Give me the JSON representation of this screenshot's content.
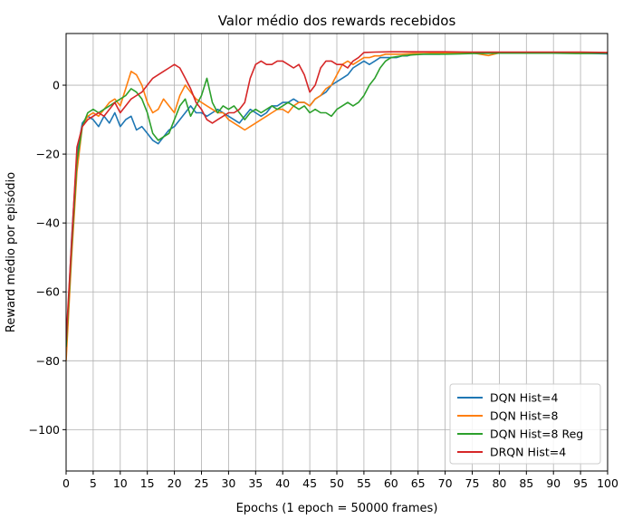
{
  "chart_data": {
    "type": "line",
    "title": "Valor médio dos rewards recebidos",
    "xlabel": "Epochs (1 epoch = 50000 frames)",
    "ylabel": "Reward médio por episódio",
    "xlim": [
      0,
      100
    ],
    "ylim": [
      -112,
      15
    ],
    "x_ticks": [
      0,
      5,
      10,
      15,
      20,
      25,
      30,
      35,
      40,
      45,
      50,
      55,
      60,
      65,
      70,
      75,
      80,
      85,
      90,
      95,
      100
    ],
    "x_tick_labels": [
      "0",
      "5",
      "10",
      "15",
      "20",
      "25",
      "30",
      "35",
      "40",
      "45",
      "50",
      "55",
      "60",
      "65",
      "70",
      "75",
      "80",
      "85",
      "90",
      "95",
      "100"
    ],
    "y_ticks": [
      -100,
      -80,
      -60,
      -40,
      -20,
      0
    ],
    "y_tick_labels": [
      "−100",
      "−80",
      "−60",
      "−40",
      "−20",
      "0"
    ],
    "grid": true,
    "legend_position": "bottom-right",
    "series": [
      {
        "name": "DQN Hist=4",
        "color": "#1f77b4",
        "points": [
          [
            0,
            -78
          ],
          [
            1,
            -45
          ],
          [
            2,
            -20
          ],
          [
            3,
            -11
          ],
          [
            4,
            -9
          ],
          [
            5,
            -10
          ],
          [
            6,
            -12
          ],
          [
            7,
            -9
          ],
          [
            8,
            -11
          ],
          [
            9,
            -8
          ],
          [
            10,
            -12
          ],
          [
            11,
            -10
          ],
          [
            12,
            -9
          ],
          [
            13,
            -13
          ],
          [
            14,
            -12
          ],
          [
            15,
            -14
          ],
          [
            16,
            -16
          ],
          [
            17,
            -17
          ],
          [
            18,
            -15
          ],
          [
            19,
            -13
          ],
          [
            20,
            -12
          ],
          [
            21,
            -10
          ],
          [
            22,
            -8
          ],
          [
            23,
            -6
          ],
          [
            24,
            -8
          ],
          [
            25,
            -8
          ],
          [
            26,
            -9
          ],
          [
            27,
            -8
          ],
          [
            28,
            -7
          ],
          [
            29,
            -8
          ],
          [
            30,
            -9
          ],
          [
            31,
            -10
          ],
          [
            32,
            -11
          ],
          [
            33,
            -9
          ],
          [
            34,
            -7
          ],
          [
            35,
            -8
          ],
          [
            36,
            -9
          ],
          [
            37,
            -8
          ],
          [
            38,
            -6
          ],
          [
            39,
            -6
          ],
          [
            40,
            -5
          ],
          [
            41,
            -5
          ],
          [
            42,
            -4
          ],
          [
            43,
            -5
          ],
          [
            44,
            -5
          ],
          [
            45,
            -6
          ],
          [
            46,
            -4
          ],
          [
            47,
            -3
          ],
          [
            48,
            -2
          ],
          [
            49,
            0
          ],
          [
            50,
            1
          ],
          [
            51,
            2
          ],
          [
            52,
            3
          ],
          [
            53,
            5
          ],
          [
            54,
            6
          ],
          [
            55,
            7
          ],
          [
            56,
            6
          ],
          [
            57,
            7
          ],
          [
            58,
            8
          ],
          [
            59,
            8
          ],
          [
            60,
            8
          ],
          [
            61,
            8
          ],
          [
            62,
            8.5
          ],
          [
            63,
            8.5
          ],
          [
            64,
            9
          ],
          [
            65,
            9
          ],
          [
            66,
            9
          ],
          [
            67,
            9
          ],
          [
            68,
            9
          ],
          [
            69,
            9
          ],
          [
            70,
            9.2
          ],
          [
            75,
            9.3
          ],
          [
            80,
            9.4
          ],
          [
            85,
            9.4
          ],
          [
            90,
            9.4
          ],
          [
            95,
            9.3
          ],
          [
            100,
            9.1
          ]
        ]
      },
      {
        "name": "DQN Hist=8",
        "color": "#ff7f0e",
        "points": [
          [
            0,
            -80
          ],
          [
            1,
            -50
          ],
          [
            2,
            -25
          ],
          [
            3,
            -12
          ],
          [
            4,
            -9
          ],
          [
            5,
            -8
          ],
          [
            6,
            -9
          ],
          [
            7,
            -7
          ],
          [
            8,
            -5
          ],
          [
            9,
            -4
          ],
          [
            10,
            -6
          ],
          [
            11,
            -1
          ],
          [
            12,
            4
          ],
          [
            13,
            3
          ],
          [
            14,
            0
          ],
          [
            15,
            -5
          ],
          [
            16,
            -8
          ],
          [
            17,
            -7
          ],
          [
            18,
            -4
          ],
          [
            19,
            -6
          ],
          [
            20,
            -8
          ],
          [
            21,
            -3
          ],
          [
            22,
            0
          ],
          [
            23,
            -2
          ],
          [
            24,
            -4
          ],
          [
            25,
            -5
          ],
          [
            26,
            -6
          ],
          [
            27,
            -7
          ],
          [
            28,
            -8
          ],
          [
            29,
            -8
          ],
          [
            30,
            -10
          ],
          [
            31,
            -11
          ],
          [
            32,
            -12
          ],
          [
            33,
            -13
          ],
          [
            34,
            -12
          ],
          [
            35,
            -11
          ],
          [
            36,
            -10
          ],
          [
            37,
            -9
          ],
          [
            38,
            -8
          ],
          [
            39,
            -7
          ],
          [
            40,
            -7
          ],
          [
            41,
            -8
          ],
          [
            42,
            -6
          ],
          [
            43,
            -5
          ],
          [
            44,
            -5
          ],
          [
            45,
            -6
          ],
          [
            46,
            -4
          ],
          [
            47,
            -3
          ],
          [
            48,
            -1
          ],
          [
            49,
            0
          ],
          [
            50,
            3
          ],
          [
            51,
            6
          ],
          [
            52,
            7
          ],
          [
            53,
            6
          ],
          [
            54,
            7
          ],
          [
            55,
            8
          ],
          [
            56,
            8
          ],
          [
            57,
            8.5
          ],
          [
            58,
            8.5
          ],
          [
            59,
            9
          ],
          [
            60,
            9
          ],
          [
            62,
            9
          ],
          [
            64,
            9.2
          ],
          [
            66,
            9.2
          ],
          [
            68,
            9.3
          ],
          [
            70,
            9.3
          ],
          [
            75,
            9.4
          ],
          [
            78,
            8.6
          ],
          [
            80,
            9.4
          ],
          [
            85,
            9.5
          ],
          [
            90,
            9.3
          ],
          [
            95,
            9.4
          ],
          [
            100,
            9.3
          ]
        ]
      },
      {
        "name": "DQN Hist=8 Reg",
        "color": "#2ca02c",
        "points": [
          [
            0,
            -76
          ],
          [
            1,
            -48
          ],
          [
            2,
            -22
          ],
          [
            3,
            -12
          ],
          [
            4,
            -8
          ],
          [
            5,
            -7
          ],
          [
            6,
            -8
          ],
          [
            7,
            -7
          ],
          [
            8,
            -6
          ],
          [
            9,
            -5
          ],
          [
            10,
            -4
          ],
          [
            11,
            -3
          ],
          [
            12,
            -1
          ],
          [
            13,
            -2
          ],
          [
            14,
            -4
          ],
          [
            15,
            -8
          ],
          [
            16,
            -14
          ],
          [
            17,
            -16
          ],
          [
            18,
            -15
          ],
          [
            19,
            -14
          ],
          [
            20,
            -10
          ],
          [
            21,
            -6
          ],
          [
            22,
            -4
          ],
          [
            23,
            -9
          ],
          [
            24,
            -6
          ],
          [
            25,
            -3
          ],
          [
            26,
            2
          ],
          [
            27,
            -5
          ],
          [
            28,
            -8
          ],
          [
            29,
            -6
          ],
          [
            30,
            -7
          ],
          [
            31,
            -6
          ],
          [
            32,
            -8
          ],
          [
            33,
            -10
          ],
          [
            34,
            -8
          ],
          [
            35,
            -7
          ],
          [
            36,
            -8
          ],
          [
            37,
            -7
          ],
          [
            38,
            -6
          ],
          [
            39,
            -7
          ],
          [
            40,
            -6
          ],
          [
            41,
            -5
          ],
          [
            42,
            -6
          ],
          [
            43,
            -7
          ],
          [
            44,
            -6
          ],
          [
            45,
            -8
          ],
          [
            46,
            -7
          ],
          [
            47,
            -8
          ],
          [
            48,
            -8
          ],
          [
            49,
            -9
          ],
          [
            50,
            -7
          ],
          [
            51,
            -6
          ],
          [
            52,
            -5
          ],
          [
            53,
            -6
          ],
          [
            54,
            -5
          ],
          [
            55,
            -3
          ],
          [
            56,
            0
          ],
          [
            57,
            2
          ],
          [
            58,
            5
          ],
          [
            59,
            7
          ],
          [
            60,
            8
          ],
          [
            62,
            8.5
          ],
          [
            64,
            8.8
          ],
          [
            66,
            9
          ],
          [
            68,
            9
          ],
          [
            70,
            9
          ],
          [
            75,
            9.2
          ],
          [
            80,
            9.3
          ],
          [
            85,
            9.3
          ],
          [
            90,
            9.3
          ],
          [
            95,
            9.2
          ],
          [
            100,
            9.3
          ]
        ]
      },
      {
        "name": "DRQN Hist=4",
        "color": "#d62728",
        "points": [
          [
            0,
            -74
          ],
          [
            1,
            -46
          ],
          [
            2,
            -18
          ],
          [
            3,
            -12
          ],
          [
            4,
            -10
          ],
          [
            5,
            -9
          ],
          [
            6,
            -8
          ],
          [
            7,
            -9
          ],
          [
            8,
            -7
          ],
          [
            9,
            -5
          ],
          [
            10,
            -8
          ],
          [
            11,
            -6
          ],
          [
            12,
            -4
          ],
          [
            13,
            -3
          ],
          [
            14,
            -2
          ],
          [
            15,
            0
          ],
          [
            16,
            2
          ],
          [
            17,
            3
          ],
          [
            18,
            4
          ],
          [
            19,
            5
          ],
          [
            20,
            6
          ],
          [
            21,
            5
          ],
          [
            22,
            2
          ],
          [
            23,
            -1
          ],
          [
            24,
            -5
          ],
          [
            25,
            -7
          ],
          [
            26,
            -10
          ],
          [
            27,
            -11
          ],
          [
            28,
            -10
          ],
          [
            29,
            -9
          ],
          [
            30,
            -8
          ],
          [
            31,
            -8
          ],
          [
            32,
            -7
          ],
          [
            33,
            -5
          ],
          [
            34,
            2
          ],
          [
            35,
            6
          ],
          [
            36,
            7
          ],
          [
            37,
            6
          ],
          [
            38,
            6
          ],
          [
            39,
            7
          ],
          [
            40,
            7
          ],
          [
            41,
            6
          ],
          [
            42,
            5
          ],
          [
            43,
            6
          ],
          [
            44,
            3
          ],
          [
            45,
            -2
          ],
          [
            46,
            0
          ],
          [
            47,
            5
          ],
          [
            48,
            7
          ],
          [
            49,
            7
          ],
          [
            50,
            6
          ],
          [
            51,
            6
          ],
          [
            52,
            5
          ],
          [
            53,
            7
          ],
          [
            54,
            8
          ],
          [
            55,
            9.5
          ],
          [
            57,
            9.6
          ],
          [
            60,
            9.7
          ],
          [
            65,
            9.7
          ],
          [
            70,
            9.7
          ],
          [
            75,
            9.6
          ],
          [
            80,
            9.6
          ],
          [
            85,
            9.6
          ],
          [
            90,
            9.6
          ],
          [
            95,
            9.6
          ],
          [
            100,
            9.5
          ]
        ]
      }
    ]
  }
}
